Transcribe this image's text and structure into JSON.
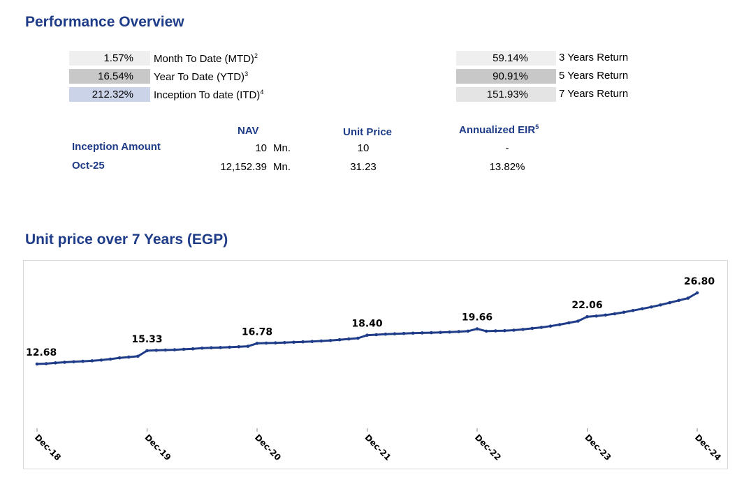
{
  "header": {
    "title": "Performance Overview"
  },
  "returns_left": [
    {
      "value": "1.57%",
      "label": "Month To Date (MTD)",
      "note": "2"
    },
    {
      "value": "16.54%",
      "label": "Year To Date (YTD)",
      "note": "3"
    },
    {
      "value": "212.32%",
      "label": "Inception To date (ITD)",
      "note": "4"
    }
  ],
  "returns_right": [
    {
      "value": "59.14%",
      "label": "3 Years Return"
    },
    {
      "value": "90.91%",
      "label": "5 Years Return"
    },
    {
      "value": "151.93%",
      "label": "7 Years Return"
    }
  ],
  "table": {
    "headers": {
      "nav": "NAV",
      "unit_price": "Unit Price",
      "eir": "Annualized EIR",
      "eir_note": "5"
    },
    "rows": [
      {
        "name": "Inception Amount",
        "nav": "10",
        "nav_unit": "Mn.",
        "unit_price": "10",
        "eir": "-"
      },
      {
        "name": "Oct-25",
        "nav": "12,152.39",
        "nav_unit": "Mn.",
        "unit_price": "31.23",
        "eir": "13.82%"
      }
    ]
  },
  "chart_title": "Unit price over 7 Years (EGP)",
  "colors": {
    "title": "#1f3c88",
    "series": "#1f3c88"
  },
  "chart_data": {
    "type": "line",
    "title": "Unit price over 7 Years (EGP)",
    "xlabel": "",
    "ylabel": "",
    "ylim": [
      0,
      28
    ],
    "grid": false,
    "tick_labels": [
      "Dec-18",
      "Dec-19",
      "Dec-20",
      "Dec-21",
      "Dec-22",
      "Dec-23",
      "Dec-24"
    ],
    "data_labels": [
      {
        "index": 0,
        "value": "12.68"
      },
      {
        "index": 12,
        "value": "15.33"
      },
      {
        "index": 24,
        "value": "16.78"
      },
      {
        "index": 36,
        "value": "18.40"
      },
      {
        "index": 48,
        "value": "19.66"
      },
      {
        "index": 60,
        "value": "22.06"
      },
      {
        "index": 72,
        "value": "26.80"
      }
    ],
    "series": [
      {
        "name": "Unit Price",
        "values": [
          12.68,
          12.75,
          12.9,
          13.02,
          13.12,
          13.22,
          13.32,
          13.45,
          13.65,
          13.9,
          14.05,
          14.22,
          15.33,
          15.4,
          15.45,
          15.5,
          15.6,
          15.7,
          15.82,
          15.9,
          15.95,
          16.02,
          16.1,
          16.2,
          16.78,
          16.83,
          16.88,
          16.93,
          17.0,
          17.08,
          17.15,
          17.25,
          17.35,
          17.5,
          17.65,
          17.8,
          18.4,
          18.5,
          18.6,
          18.68,
          18.75,
          18.8,
          18.85,
          18.9,
          18.95,
          19.02,
          19.1,
          19.2,
          19.66,
          19.2,
          19.25,
          19.3,
          19.4,
          19.55,
          19.75,
          19.95,
          20.2,
          20.5,
          20.85,
          21.2,
          22.06,
          22.2,
          22.4,
          22.65,
          22.95,
          23.3,
          23.65,
          24.0,
          24.4,
          24.85,
          25.3,
          25.75,
          26.8
        ]
      }
    ]
  }
}
